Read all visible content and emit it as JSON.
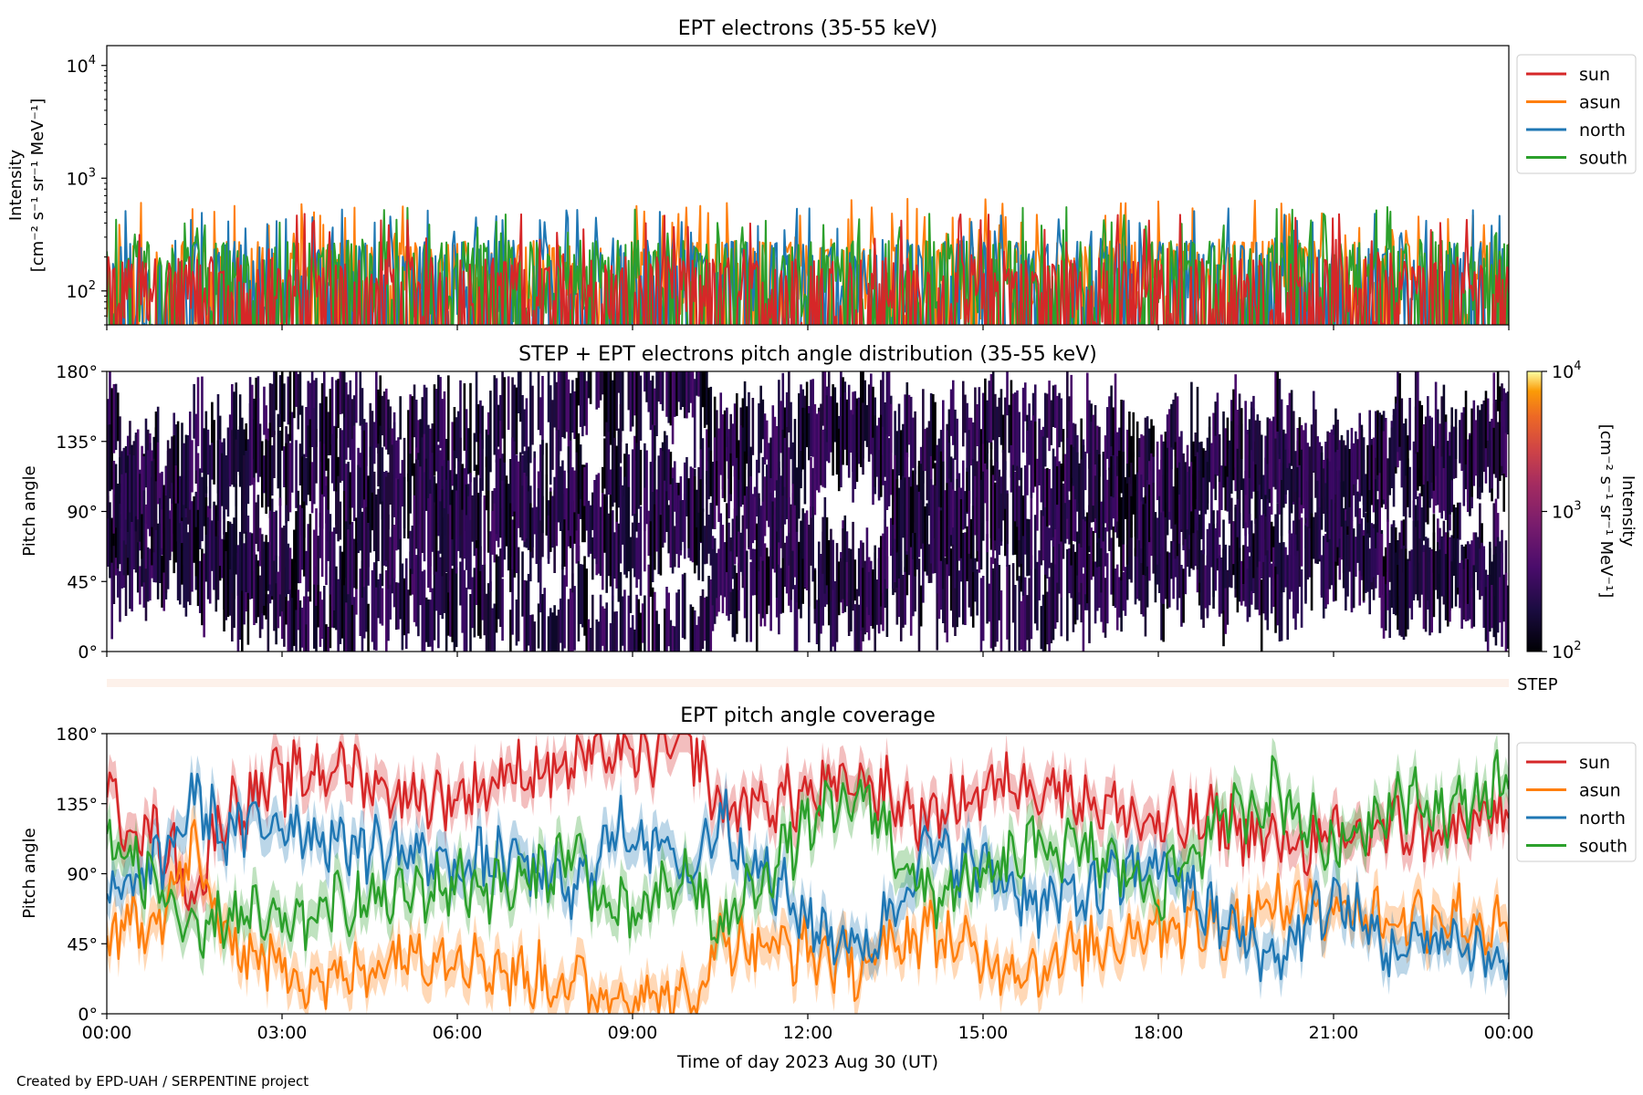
{
  "footer": "Created by EPD-UAH / SERPENTINE project",
  "xaxis": {
    "label": "Time of day 2023 Aug 30 (UT)",
    "ticks": [
      "00:00",
      "03:00",
      "06:00",
      "09:00",
      "12:00",
      "15:00",
      "18:00",
      "21:00",
      "00:00"
    ],
    "range_hours": [
      0,
      24
    ]
  },
  "colors": {
    "sun": "#d62728",
    "asun": "#ff7f0e",
    "north": "#1f77b4",
    "south": "#2ca02c"
  },
  "chart_data": [
    {
      "type": "line",
      "title": "EPT electrons (35-55 keV)",
      "ylabel_line1": "Intensity",
      "ylabel_line2": "[cm⁻² s⁻¹ sr⁻¹ MeV⁻¹]",
      "yscale": "log",
      "ylim": [
        50,
        15000
      ],
      "yticks": [
        {
          "base": "10",
          "exp": "2",
          "value": 100
        },
        {
          "base": "10",
          "exp": "3",
          "value": 1000
        },
        {
          "base": "10",
          "exp": "4",
          "value": 10000
        }
      ],
      "legend_position": "outside-right",
      "series": [
        {
          "name": "sun",
          "color": "#d62728",
          "typical_level": 100,
          "peak_level": 450,
          "noise": "high"
        },
        {
          "name": "asun",
          "color": "#ff7f0e",
          "typical_level": 150,
          "peak_level": 600,
          "noise": "high"
        },
        {
          "name": "north",
          "color": "#1f77b4",
          "typical_level": 150,
          "peak_level": 500,
          "noise": "high"
        },
        {
          "name": "south",
          "color": "#2ca02c",
          "typical_level": 150,
          "peak_level": 500,
          "noise": "high"
        }
      ]
    },
    {
      "type": "heatmap",
      "title": "STEP + EPT electrons pitch angle distribution (35-55 keV)",
      "ylabel": "Pitch angle",
      "ylim": [
        0,
        180
      ],
      "yticks": [
        "0°",
        "45°",
        "90°",
        "135°",
        "180°"
      ],
      "colorbar": {
        "label_line1": "Intensity",
        "label_line2": "[cm⁻² s⁻¹ sr⁻¹ MeV⁻¹]",
        "scale": "log",
        "range": [
          100,
          10000
        ],
        "ticks": [
          {
            "base": "10",
            "exp": "2"
          },
          {
            "base": "10",
            "exp": "3"
          },
          {
            "base": "10",
            "exp": "4"
          }
        ],
        "colormap": "inferno"
      },
      "typical_intensity": 100
    },
    {
      "type": "bar",
      "label": "STEP",
      "color": "#fdf1ea"
    },
    {
      "type": "line",
      "title": "EPT pitch angle coverage",
      "ylabel": "Pitch angle",
      "ylim": [
        0,
        180
      ],
      "yticks": [
        "0°",
        "45°",
        "90°",
        "135°",
        "180°"
      ],
      "legend_position": "outside-right",
      "series": [
        {
          "name": "sun",
          "color": "#d62728",
          "x": [
            0,
            1,
            1.5,
            2,
            3,
            4,
            5,
            6,
            7,
            8,
            8.5,
            9,
            10,
            10.5,
            11,
            12,
            13,
            14,
            15,
            16,
            17,
            18,
            19,
            20,
            21,
            22,
            23,
            24
          ],
          "y": [
            135,
            110,
            75,
            130,
            150,
            160,
            140,
            140,
            155,
            160,
            170,
            165,
            175,
            130,
            135,
            140,
            150,
            125,
            145,
            150,
            135,
            120,
            125,
            110,
            110,
            120,
            115,
            130
          ]
        },
        {
          "name": "asun",
          "color": "#ff7f0e",
          "x": [
            0,
            1,
            1.5,
            2,
            3,
            4,
            5,
            6,
            7,
            8,
            8.5,
            9,
            10,
            10.5,
            11,
            12,
            13,
            14,
            15,
            16,
            17,
            18,
            19,
            20,
            21,
            22,
            23,
            24
          ],
          "y": [
            45,
            70,
            105,
            50,
            30,
            20,
            40,
            40,
            25,
            20,
            10,
            15,
            5,
            50,
            45,
            40,
            30,
            55,
            35,
            30,
            45,
            60,
            55,
            70,
            70,
            60,
            65,
            50
          ]
        },
        {
          "name": "north",
          "color": "#1f77b4",
          "x": [
            0,
            1,
            1.5,
            2,
            3,
            4,
            5,
            6,
            7,
            8,
            8.5,
            9,
            10,
            10.5,
            11,
            12,
            13,
            14,
            15,
            16,
            17,
            18,
            19,
            20,
            21,
            22,
            23,
            24
          ],
          "y": [
            70,
            100,
            140,
            115,
            125,
            110,
            105,
            95,
            100,
            75,
            110,
            120,
            90,
            130,
            100,
            60,
            40,
            105,
            95,
            70,
            80,
            100,
            60,
            35,
            75,
            40,
            50,
            30
          ]
        },
        {
          "name": "south",
          "color": "#2ca02c",
          "x": [
            0,
            1,
            1.5,
            2,
            3,
            4,
            5,
            6,
            7,
            8,
            8.5,
            9,
            10,
            10.5,
            11,
            12,
            13,
            14,
            15,
            16,
            17,
            18,
            19,
            20,
            21,
            22,
            23,
            24
          ],
          "y": [
            110,
            80,
            40,
            65,
            55,
            70,
            75,
            85,
            80,
            105,
            70,
            60,
            90,
            50,
            80,
            120,
            140,
            75,
            85,
            110,
            100,
            80,
            120,
            145,
            105,
            140,
            130,
            150
          ]
        }
      ]
    }
  ]
}
